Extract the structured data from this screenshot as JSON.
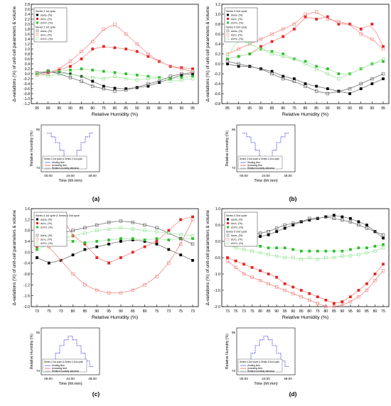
{
  "figure": {
    "panels": [
      {
        "id": "a",
        "caption": "(a)",
        "xlabel": "Relative Humidity (%)",
        "ylabel": "Δ-variations (%) of unit-cell parameters & volume",
        "yticks": [
          "-1.2",
          "-1.0",
          "-0.8",
          "-0.6",
          "-0.4",
          "-0.2",
          "0.0",
          "0.2",
          "0.4",
          "0.6",
          "0.8",
          "1.0",
          "1.2",
          "1.4",
          "1.6",
          "1.8",
          "2.0",
          "2.2",
          "2.4",
          "2.6",
          "2.8"
        ],
        "xticks": [
          "95",
          "90",
          "95",
          "90",
          "85",
          "80",
          "75",
          "80",
          "85",
          "90",
          "95",
          "90",
          "85",
          "90",
          "95"
        ],
        "legend": {
          "group1_title": "Series 3 1st cycle",
          "group1": [
            "Δa/a₀ (%)",
            "Δc/c₀ (%)",
            "ΔV/V₀ (%)"
          ],
          "group2_title": "Series 3 1st cycle",
          "group2": [
            "Δa/a₀ (%)",
            "Δc/c₀ (%)",
            "ΔV/V₀ (%)"
          ]
        },
        "inset": {
          "ylabel": "Relative Humidity (%)",
          "xlabel": "Time (hh:mm)",
          "xticks": [
            "00:00",
            "24:00",
            "48:00"
          ],
          "yticks": [
            "95",
            "73"
          ],
          "legend_title": "Series 3 1st cycle & Series 3 1st cycle",
          "legend": [
            "Heating time",
            "Annealing time",
            "Relative humidity alteration"
          ]
        }
      },
      {
        "id": "b",
        "caption": "(b)",
        "xlabel": "Relative Humidity (%)",
        "ylabel": "Δ-variations (%) of unit-cell parameters & volume",
        "yticks": [
          "-0.8",
          "-0.6",
          "-0.4",
          "-0.2",
          "0.0",
          "0.2",
          "0.4",
          "0.6",
          "0.8",
          "1.0",
          "1.2"
        ],
        "xticks": [
          "85",
          "90",
          "95",
          "90",
          "85",
          "80",
          "75",
          "80",
          "85",
          "90",
          "95",
          "90",
          "85",
          "90",
          "95"
        ],
        "legend": {
          "group1_title": "Series 3 2nd cycle",
          "group1": [
            "Δa/a₀ (%)",
            "Δc/c₀ (%)",
            "ΔV/V₀ (%)"
          ],
          "group2_title": "Series 3 2nd cycle",
          "group2": [
            "Δa/a₀ (%)",
            "Δc/c₀ (%)",
            "ΔV/V₀ (%)"
          ]
        },
        "inset": {
          "ylabel": "Relative Humidity (%)",
          "xlabel": "Time (hh:mm)",
          "xticks": [
            "00:00",
            "24:00",
            "48:00"
          ],
          "yticks": [
            "95",
            "73"
          ],
          "legend_title": "Series 3 2nd cycle & Series 3 2nd cycle",
          "legend": [
            "Heating time",
            "Annealing time",
            "Relative humidity alteration"
          ]
        }
      },
      {
        "id": "c",
        "caption": "(c)",
        "xlabel": "Relative Humidity (%)",
        "ylabel": "Δ-variations (%) of unit-cell parameters & volume",
        "yticks": [
          "-2.0",
          "-1.6",
          "-1.2",
          "-0.8",
          "-0.4",
          "0.0",
          "0.4",
          "0.8",
          "1.2",
          "1.6"
        ],
        "xticks": [
          "73",
          "75",
          "73",
          "80",
          "85",
          "90",
          "95",
          "90",
          "85",
          "80",
          "75",
          "73",
          "75",
          "73"
        ],
        "legend": {
          "group1_title": "Series 4 1st cycle & Series 4 2nd cycle",
          "group1": [
            "Δa/a₀ (%)",
            "Δc/c₀ (%)",
            "ΔV/V₀ (%)"
          ],
          "group2_title": "",
          "group2": [
            "Δa/a₀ (%)",
            "Δc/c₀ (%)",
            "ΔV/V₀ (%)"
          ]
        },
        "inset": {
          "ylabel": "Relative Humidity (%)",
          "xlabel": "Time (hh:mm)",
          "xticks": [
            "00:00",
            "24:00",
            "48:00"
          ],
          "yticks": [
            "95",
            "73"
          ],
          "legend_title": "Series 4 1st cycle & Series 4 2nd cycle",
          "legend": [
            "Heating time",
            "Annealing time",
            "Relative humidity alteration"
          ]
        }
      },
      {
        "id": "d",
        "caption": "(d)",
        "xlabel": "Relative Humidity (%)",
        "ylabel": "Δ-variations (%) of unit-cell parameters & volume",
        "yticks": [
          "-2.0",
          "-1.5",
          "-1.0",
          "-0.5",
          "0.0",
          "0.5",
          "1.0"
        ],
        "xticks": [
          "73",
          "75",
          "73",
          "75",
          "80",
          "85",
          "90",
          "95",
          "90",
          "85",
          "80",
          "75",
          "80",
          "85",
          "90",
          "95",
          "90",
          "85",
          "80",
          "75"
        ],
        "legend": {
          "group1_title": "Series 4 2nd cycle",
          "group1": [
            "Δa/a₀ (%)",
            "Δc/c₀ (%)",
            "ΔV/V₀ (%)"
          ],
          "group2_title": "Series 5 2nd cycle",
          "group2": [
            "Δa/a₀ (%)",
            "Δc/c₀ (%)",
            "ΔV/V₀ (%)"
          ]
        },
        "inset": {
          "ylabel": "Relative Humidity (%)",
          "xlabel": "Time (hh:mm)",
          "xticks": [
            "00:00",
            "24:00",
            "48:00"
          ],
          "yticks": [
            "95",
            "73"
          ],
          "legend_title": "Series 4 2nd cycle & Series 5 2nd cycle",
          "legend": [
            "Heating time",
            "Annealing time",
            "Relative humidity alteration"
          ]
        }
      }
    ]
  },
  "colors": {
    "a_series": "#000000",
    "c_series": "#e8231f",
    "v_series": "#2fbf2f",
    "a_open": "#555555",
    "c_open": "#f07b78",
    "v_open": "#8fe08f",
    "fit_a": "#777777",
    "fit_c": "#f28a86",
    "fit_v": "#a6e6a6",
    "rh_line": "#2a2adf",
    "heating": "#2a2adf",
    "annealing": "#e8231f",
    "alteration": "#888888"
  },
  "chart_data": [
    {
      "panel": "a",
      "type": "scatter",
      "ylim": [
        -1.2,
        2.8
      ],
      "series": [
        {
          "name": "Δa/a₀ (%)",
          "marker": "filled",
          "color": "a_series",
          "values": [
            0.0,
            0.05,
            0.08,
            0.0,
            -0.1,
            -0.3,
            -0.5,
            -0.58,
            -0.6,
            -0.55,
            -0.5,
            -0.35,
            -0.2,
            -0.05,
            0.0
          ]
        },
        {
          "name": "Δc/c₀ (%)",
          "marker": "filled",
          "color": "c_series",
          "values": [
            0.0,
            0.1,
            0.15,
            0.3,
            0.6,
            1.0,
            1.1,
            1.05,
            1.0,
            0.9,
            0.7,
            0.5,
            0.3,
            0.25,
            0.2
          ]
        },
        {
          "name": "ΔV/V₀ (%)",
          "marker": "filled",
          "color": "v_series",
          "values": [
            0.0,
            0.12,
            0.1,
            0.15,
            0.2,
            0.15,
            0.1,
            0.05,
            0.0,
            -0.05,
            -0.1,
            -0.15,
            -0.2,
            -0.15,
            -0.1
          ]
        },
        {
          "name": "Δa/a₀ (%)",
          "marker": "open",
          "color": "a_open",
          "values": [
            0.05,
            0.1,
            0.0,
            -0.15,
            -0.3,
            -0.5,
            -0.6,
            -0.7,
            -0.65,
            -0.55,
            -0.4,
            -0.3,
            -0.1,
            0.0,
            0.05
          ]
        },
        {
          "name": "Δc/c₀ (%)",
          "marker": "open",
          "color": "c_open",
          "values": [
            -0.05,
            0.0,
            0.2,
            0.5,
            0.9,
            1.3,
            1.8,
            2.0,
            1.6,
            1.2,
            0.8,
            0.5,
            0.3,
            0.2,
            0.1
          ]
        },
        {
          "name": "ΔV/V₀ (%)",
          "marker": "open",
          "color": "v_open",
          "values": [
            0.0,
            -0.1,
            0.0,
            0.0,
            -0.1,
            -0.15,
            -0.2,
            -0.1,
            -0.2,
            -0.25,
            -0.2,
            -0.15,
            -0.3,
            -0.25,
            -0.2
          ]
        }
      ]
    },
    {
      "panel": "b",
      "type": "scatter",
      "ylim": [
        -0.8,
        1.2
      ],
      "series": [
        {
          "name": "Δa/a₀ (%)",
          "marker": "filled",
          "color": "a_series",
          "values": [
            0.0,
            -0.05,
            -0.05,
            -0.1,
            -0.15,
            -0.25,
            -0.3,
            -0.4,
            -0.45,
            -0.5,
            -0.55,
            -0.6,
            -0.5,
            -0.4,
            -0.3
          ]
        },
        {
          "name": "Δc/c₀ (%)",
          "marker": "filled",
          "color": "c_series",
          "values": [
            0.1,
            0.15,
            0.2,
            0.35,
            0.45,
            0.55,
            0.7,
            0.95,
            0.9,
            0.95,
            0.8,
            0.8,
            0.7,
            0.8,
            0.35
          ]
        },
        {
          "name": "ΔV/V₀ (%)",
          "marker": "filled",
          "color": "v_series",
          "values": [
            0.1,
            0.15,
            0.2,
            0.3,
            0.25,
            0.2,
            0.1,
            0.05,
            -0.05,
            -0.1,
            -0.2,
            -0.2,
            -0.1,
            0.0,
            0.05
          ]
        },
        {
          "name": "Δa/a₀ (%)",
          "marker": "open",
          "color": "a_open",
          "values": [
            0.05,
            0.0,
            -0.05,
            -0.1,
            -0.2,
            -0.3,
            -0.35,
            -0.45,
            -0.55,
            -0.6,
            -0.55,
            -0.5,
            -0.4,
            -0.3,
            -0.2
          ]
        },
        {
          "name": "Δc/c₀ (%)",
          "marker": "open",
          "color": "c_open",
          "values": [
            0.2,
            0.3,
            0.4,
            0.5,
            0.6,
            0.7,
            0.8,
            1.0,
            1.05,
            0.9,
            0.85,
            0.8,
            0.6,
            0.5,
            0.3
          ]
        },
        {
          "name": "ΔV/V₀ (%)",
          "marker": "open",
          "color": "v_open",
          "values": [
            0.15,
            0.5,
            0.4,
            0.3,
            0.2,
            0.15,
            0.1,
            0.0,
            -0.1,
            -0.2,
            -0.3,
            -0.2,
            -0.1,
            0.0,
            0.1
          ]
        }
      ]
    },
    {
      "panel": "c",
      "type": "scatter",
      "ylim": [
        -2.0,
        1.6
      ],
      "series": [
        {
          "name": "Δa/a₀ (%)",
          "marker": "filled",
          "color": "a_series",
          "values": [
            -0.2,
            -0.4,
            -0.3,
            -0.1,
            0.1,
            0.2,
            0.3,
            0.4,
            0.45,
            0.4,
            0.3,
            0.1,
            -0.1,
            -0.3
          ]
        },
        {
          "name": "Δc/c₀ (%)",
          "marker": "filled",
          "color": "c_series",
          "values": [
            0.2,
            0.8,
            1.35,
            0.6,
            0.3,
            -0.2,
            -0.4,
            -0.2,
            0.0,
            0.2,
            0.4,
            0.8,
            1.2,
            1.3
          ]
        },
        {
          "name": "ΔV/V₀ (%)",
          "marker": "filled",
          "color": "v_series",
          "values": [
            0.1,
            0.3,
            0.5,
            0.4,
            0.35,
            0.4,
            0.45,
            0.5,
            0.5,
            0.45,
            0.5,
            0.45,
            0.5,
            0.5
          ]
        },
        {
          "name": "Δa/a₀ (%)",
          "marker": "open",
          "color": "a_open",
          "values": [
            0.3,
            0.5,
            0.7,
            0.8,
            0.9,
            1.0,
            1.1,
            1.15,
            1.1,
            1.0,
            0.9,
            0.7,
            0.5,
            0.3
          ]
        },
        {
          "name": "Δc/c₀ (%)",
          "marker": "open",
          "color": "c_open",
          "values": [
            0.5,
            0.2,
            -0.3,
            -0.8,
            -1.2,
            -1.4,
            -1.5,
            -1.5,
            -1.4,
            -1.2,
            -0.9,
            -0.4,
            0.3,
            1.2
          ]
        },
        {
          "name": "ΔV/V₀ (%)",
          "marker": "open",
          "color": "v_open",
          "values": [
            0.2,
            0.4,
            0.5,
            0.6,
            0.7,
            0.8,
            0.85,
            0.9,
            0.85,
            0.8,
            0.75,
            0.7,
            0.65,
            0.6
          ]
        }
      ]
    },
    {
      "panel": "d",
      "type": "scatter",
      "ylim": [
        -2.0,
        1.0
      ],
      "series": [
        {
          "name": "Δa/a₀ (%)",
          "marker": "filled",
          "color": "a_series",
          "values": [
            0.2,
            0.15,
            0.1,
            0.1,
            0.15,
            0.2,
            0.3,
            0.4,
            0.5,
            0.6,
            0.65,
            0.7,
            0.75,
            0.8,
            0.75,
            0.7,
            0.6,
            0.5,
            0.3,
            0.1
          ]
        },
        {
          "name": "Δc/c₀ (%)",
          "marker": "filled",
          "color": "c_series",
          "values": [
            -0.5,
            -0.6,
            -0.7,
            -0.8,
            -0.9,
            -1.0,
            -1.1,
            -1.3,
            -1.4,
            -1.5,
            -1.6,
            -1.7,
            -1.8,
            -1.9,
            -1.85,
            -1.7,
            -1.5,
            -1.3,
            -1.0,
            -0.7
          ]
        },
        {
          "name": "ΔV/V₀ (%)",
          "marker": "filled",
          "color": "v_series",
          "values": [
            0.0,
            -0.05,
            -0.1,
            -0.1,
            -0.15,
            -0.2,
            -0.2,
            -0.2,
            -0.25,
            -0.3,
            -0.3,
            -0.3,
            -0.3,
            -0.3,
            -0.3,
            -0.25,
            -0.2,
            -0.2,
            -0.15,
            -0.1
          ]
        },
        {
          "name": "Δa/a₀ (%)",
          "marker": "open",
          "color": "a_open",
          "values": [
            0.3,
            0.25,
            0.2,
            0.2,
            0.25,
            0.3,
            0.4,
            0.5,
            0.55,
            0.6,
            0.7,
            0.7,
            0.75,
            0.7,
            0.65,
            0.6,
            0.5,
            0.4,
            0.3,
            0.2
          ]
        },
        {
          "name": "Δc/c₀ (%)",
          "marker": "open",
          "color": "c_open",
          "values": [
            -0.6,
            -0.8,
            -1.0,
            -1.1,
            -1.2,
            -1.3,
            -1.4,
            -1.5,
            -1.6,
            -1.7,
            -1.8,
            -1.9,
            -2.0,
            -2.0,
            -1.95,
            -1.85,
            -1.7,
            -1.5,
            -1.2,
            -0.9
          ]
        },
        {
          "name": "ΔV/V₀ (%)",
          "marker": "open",
          "color": "v_open",
          "values": [
            -0.1,
            -0.2,
            -0.25,
            -0.3,
            -0.35,
            -0.4,
            -0.45,
            -0.5,
            -0.5,
            -0.55,
            -0.5,
            -0.55,
            -0.5,
            -0.5,
            -0.45,
            -0.45,
            -0.4,
            -0.35,
            -0.3,
            -0.2
          ]
        }
      ]
    }
  ]
}
